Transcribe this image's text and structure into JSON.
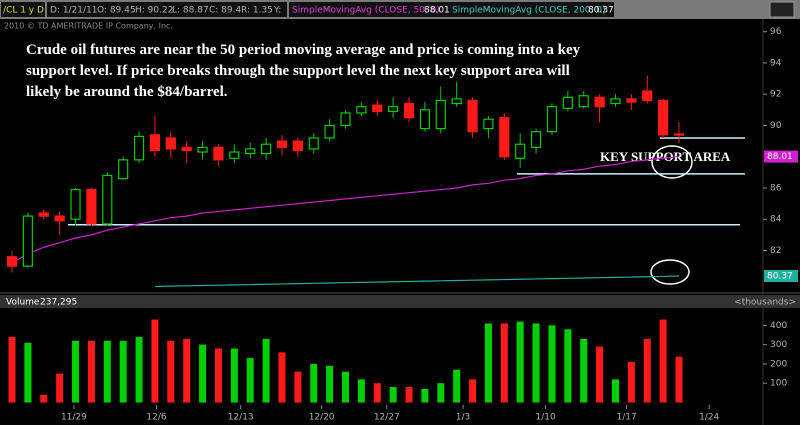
{
  "header": {
    "symbol": "/CL 1 y D",
    "date": "D: 1/21/11",
    "open": "O: 89.45",
    "high": "H: 90.22",
    "low": "L: 88.87",
    "close": "C: 89.4",
    "range": "R: 1.35",
    "y": "Y:"
  },
  "copyright": "2010 © TD AMERITRADE IP Company, Inc.",
  "chart_data": [
    {
      "type": "candlestick",
      "annotation": "Crude oil futures are near the 50 period moving average and price is coming into a key support level. If price breaks through the support level the next key support area will likely be around the $84/barrel.",
      "support_label": "KEY SUPPORT AREA",
      "up_color": "#00d000",
      "down_color": "#ff1a1a",
      "open": [
        81.6,
        81.0,
        84.4,
        84.2,
        84.0,
        85.9,
        83.7,
        86.6,
        87.8,
        89.4,
        89.2,
        88.6,
        88.3,
        88.6,
        87.9,
        88.2,
        88.2,
        89.0,
        89.0,
        88.5,
        89.2,
        90.0,
        90.8,
        91.3,
        90.9,
        91.4,
        89.8,
        89.8,
        91.4,
        91.6,
        89.8,
        90.5,
        87.9,
        88.6,
        89.6,
        91.1,
        91.2,
        91.8,
        91.4,
        91.7,
        92.2,
        91.6,
        89.45
      ],
      "high": [
        82.0,
        84.4,
        84.6,
        84.5,
        86.0,
        86.0,
        87.0,
        88.0,
        89.6,
        90.6,
        89.6,
        89.0,
        89.0,
        88.8,
        88.8,
        88.9,
        89.2,
        89.4,
        89.2,
        89.5,
        90.4,
        91.0,
        91.5,
        91.6,
        91.8,
        91.8,
        91.5,
        92.5,
        92.8,
        91.8,
        90.6,
        90.8,
        89.5,
        89.8,
        91.4,
        92.2,
        92.2,
        92.0,
        92.0,
        92.0,
        93.2,
        91.7,
        90.22
      ],
      "low": [
        80.6,
        80.9,
        84.0,
        83.0,
        83.6,
        83.6,
        83.6,
        86.5,
        87.6,
        88.0,
        87.9,
        87.6,
        87.8,
        87.4,
        87.6,
        87.9,
        87.8,
        88.1,
        88.0,
        88.2,
        89.0,
        89.8,
        90.6,
        90.6,
        90.5,
        90.2,
        89.6,
        89.5,
        91.2,
        89.2,
        89.2,
        87.8,
        87.3,
        88.2,
        89.4,
        90.9,
        91.1,
        90.2,
        91.2,
        91.0,
        91.4,
        89.2,
        88.87
      ],
      "close": [
        81.0,
        84.2,
        84.2,
        83.9,
        85.9,
        83.7,
        86.8,
        87.8,
        89.3,
        88.4,
        88.5,
        88.4,
        88.6,
        87.8,
        88.3,
        88.5,
        88.8,
        88.6,
        88.4,
        89.2,
        90.0,
        90.8,
        91.2,
        90.9,
        91.2,
        90.5,
        91.0,
        91.6,
        91.7,
        89.6,
        90.4,
        88.0,
        88.8,
        89.6,
        91.2,
        91.8,
        91.9,
        91.2,
        91.7,
        91.5,
        91.6,
        89.4,
        89.4
      ],
      "series": [
        {
          "name": "SimpleMovingAvg (CLOSE, 50, 0)",
          "color": "#d020d0",
          "values": [
            81.2,
            81.8,
            82.2,
            82.5,
            82.8,
            83.0,
            83.3,
            83.5,
            83.7,
            83.9,
            84.1,
            84.2,
            84.4,
            84.5,
            84.6,
            84.7,
            84.8,
            84.9,
            85.0,
            85.1,
            85.2,
            85.3,
            85.4,
            85.5,
            85.6,
            85.7,
            85.8,
            85.9,
            86.0,
            86.2,
            86.3,
            86.5,
            86.6,
            86.8,
            86.9,
            87.1,
            87.2,
            87.4,
            87.5,
            87.7,
            87.8,
            87.9,
            88.01
          ]
        },
        {
          "name": "SimpleMovingAvg (CLOSE, 200, 0)",
          "color": "#20b0a0",
          "values": [
            null,
            null,
            null,
            null,
            null,
            null,
            null,
            null,
            null,
            79.7,
            79.72,
            79.74,
            79.76,
            79.78,
            79.8,
            79.82,
            79.84,
            79.86,
            79.88,
            79.9,
            79.92,
            79.94,
            79.96,
            79.98,
            80.0,
            80.02,
            80.04,
            80.06,
            80.08,
            80.1,
            80.12,
            80.14,
            80.16,
            80.18,
            80.2,
            80.22,
            80.24,
            80.26,
            80.28,
            80.3,
            80.32,
            80.34,
            80.37
          ]
        }
      ],
      "support_levels": [
        83.65,
        86.9,
        89.2
      ],
      "ylim": [
        79.6,
        96.3
      ],
      "yticks": [
        82,
        84,
        86,
        90,
        92,
        94,
        96
      ]
    },
    {
      "type": "bar",
      "title": "Volume",
      "last_label": "237,295",
      "unit": "<thousands>",
      "values": [
        340,
        310,
        40,
        150,
        320,
        320,
        320,
        320,
        340,
        430,
        320,
        330,
        300,
        280,
        280,
        230,
        330,
        260,
        160,
        200,
        190,
        160,
        120,
        100,
        80,
        80,
        70,
        100,
        170,
        120,
        410,
        410,
        420,
        410,
        400,
        380,
        330,
        290,
        120,
        210,
        330,
        430,
        237.295
      ],
      "ylim": [
        0,
        490
      ],
      "yticks": [
        100,
        200,
        300,
        400
      ],
      "xticks": [
        {
          "value": 3.9,
          "label": "11/29"
        },
        {
          "value": 9.1,
          "label": "12/6"
        },
        {
          "value": 14.4,
          "label": "12/13"
        },
        {
          "value": 19.5,
          "label": "12/20"
        },
        {
          "value": 23.6,
          "label": "12/27"
        },
        {
          "value": 28.4,
          "label": "1/3"
        },
        {
          "value": 33.6,
          "label": "1/10"
        },
        {
          "value": 38.7,
          "label": "1/17"
        },
        {
          "value": 43.9,
          "label": "1/24"
        }
      ]
    }
  ]
}
